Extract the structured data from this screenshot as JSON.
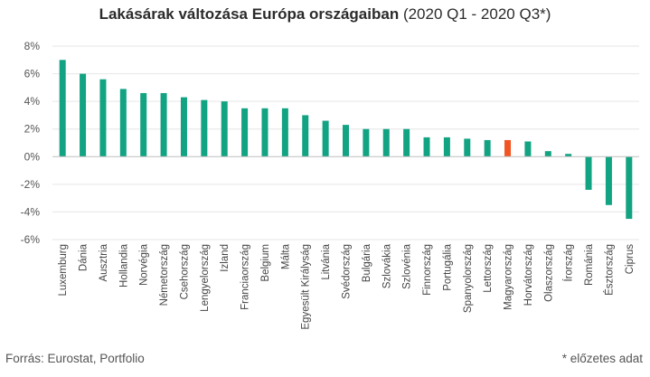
{
  "title_bold": "Lakásárak változása Európa országaiban",
  "title_rest": " (2020 Q1 - 2020 Q3*)",
  "source": "Forrás: Eurostat, Portfolio",
  "footnote": "* előzetes adat",
  "colors": {
    "bar": "#12a383",
    "highlight": "#f05523",
    "axis": "#bfbfbf",
    "grid": "#e6e6e6"
  },
  "chart_data": {
    "type": "bar",
    "title": "Lakásárak változása Európa országaiban (2020 Q1 - 2020 Q3*)",
    "xlabel": "",
    "ylabel": "",
    "ylim": [
      -6,
      8
    ],
    "yticks": [
      8,
      6,
      4,
      2,
      0,
      -2,
      -4,
      -6
    ],
    "ytick_labels": [
      "8%",
      "6%",
      "4%",
      "2%",
      "0%",
      "-2%",
      "-4%",
      "-6%"
    ],
    "grid": true,
    "highlight_category": "Magyarország",
    "categories": [
      "Luxemburg",
      "Dánia",
      "Ausztria",
      "Hollandia",
      "Norvégia",
      "Németország",
      "Csehország",
      "Lengyelország",
      "Izland",
      "Franciaország",
      "Belgium",
      "Málta",
      "Egyesült Királyság",
      "Litvánia",
      "Svédország",
      "Bulgária",
      "Szlovákia",
      "Szlovénia",
      "Finnország",
      "Portugália",
      "Spanyolország",
      "Lettország",
      "Magyarország",
      "Horvátország",
      "Olaszország",
      "Írország",
      "Románia",
      "Észtország",
      "Ciprus"
    ],
    "values": [
      7.0,
      6.0,
      5.6,
      4.9,
      4.6,
      4.6,
      4.3,
      4.1,
      4.0,
      3.5,
      3.5,
      3.5,
      3.0,
      2.6,
      2.3,
      2.0,
      2.0,
      2.0,
      1.4,
      1.4,
      1.3,
      1.2,
      1.2,
      1.1,
      0.4,
      0.2,
      -2.4,
      -3.5,
      -4.5
    ]
  }
}
